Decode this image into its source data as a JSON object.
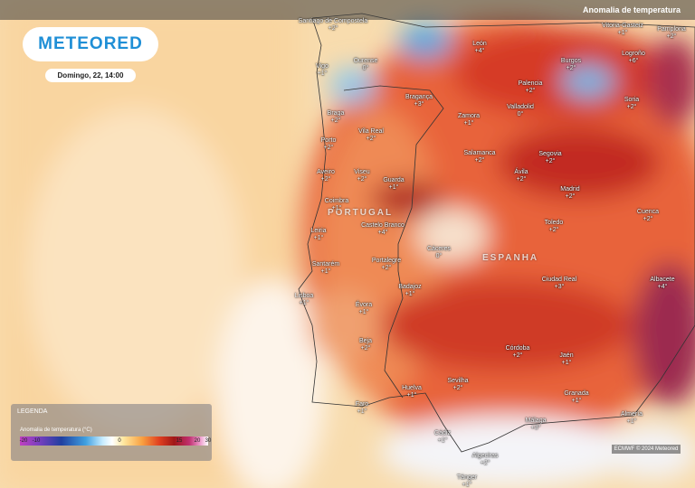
{
  "header": {
    "layer": "Anomalia de temperatura",
    "logo": "METEORED",
    "date": "Domingo, 22, 14:00"
  },
  "countries": [
    "PORTUGAL",
    "ESPANHA"
  ],
  "cities": [
    {
      "name": "Santiago de Compostela",
      "value": "+2°"
    },
    {
      "name": "Ourense",
      "value": "0°"
    },
    {
      "name": "Vigo",
      "value": "+1°"
    },
    {
      "name": "León",
      "value": "+4°"
    },
    {
      "name": "Palencia",
      "value": "+2°"
    },
    {
      "name": "Burgos",
      "value": "+2°"
    },
    {
      "name": "Vitoria-Gasteiz",
      "value": "+1°"
    },
    {
      "name": "Pamplona",
      "value": "+2°"
    },
    {
      "name": "Logroño",
      "value": "+6°"
    },
    {
      "name": "Bragança",
      "value": "+3°"
    },
    {
      "name": "Braga",
      "value": "+2°"
    },
    {
      "name": "Vila Real",
      "value": "+2°"
    },
    {
      "name": "Zamora",
      "value": "+1°"
    },
    {
      "name": "Valladolid",
      "value": "0°"
    },
    {
      "name": "Soria",
      "value": "+2°"
    },
    {
      "name": "Porto",
      "value": "+2°"
    },
    {
      "name": "Salamanca",
      "value": "+2°"
    },
    {
      "name": "Segovia",
      "value": "+2°"
    },
    {
      "name": "Aveiro",
      "value": "+2°"
    },
    {
      "name": "Viseu",
      "value": "+2°"
    },
    {
      "name": "Guarda",
      "value": "+1°"
    },
    {
      "name": "Ávila",
      "value": "+2°"
    },
    {
      "name": "Madrid",
      "value": "+2°"
    },
    {
      "name": "Coimbra",
      "value": "+1°"
    },
    {
      "name": "Cuenca",
      "value": "+2°"
    },
    {
      "name": "Leiria",
      "value": "+1°"
    },
    {
      "name": "Castelo Branco",
      "value": "+4°"
    },
    {
      "name": "Toledo",
      "value": "+2°"
    },
    {
      "name": "Cáceres",
      "value": "0°"
    },
    {
      "name": "Santarém",
      "value": "+1°"
    },
    {
      "name": "Portalegre",
      "value": "+2°"
    },
    {
      "name": "Albacete",
      "value": "+4°"
    },
    {
      "name": "Ciudad Real",
      "value": "+3°"
    },
    {
      "name": "Lisboa",
      "value": "+1°"
    },
    {
      "name": "Badajoz",
      "value": "+1°"
    },
    {
      "name": "Évora",
      "value": "+1°"
    },
    {
      "name": "Beja",
      "value": "+2°"
    },
    {
      "name": "Córdoba",
      "value": "+2°"
    },
    {
      "name": "Jaén",
      "value": "+1°"
    },
    {
      "name": "Sevilha",
      "value": "+2°"
    },
    {
      "name": "Huelva",
      "value": "+1°"
    },
    {
      "name": "Faro",
      "value": "+1°"
    },
    {
      "name": "Granada",
      "value": "+1°"
    },
    {
      "name": "Almería",
      "value": "+1°"
    },
    {
      "name": "Málaga",
      "value": "+3°"
    },
    {
      "name": "Cádiz",
      "value": "+1°"
    },
    {
      "name": "Algeciras",
      "value": "+2°"
    },
    {
      "name": "Tánger",
      "value": "+1°"
    }
  ],
  "legend": {
    "title": "LEGENDA",
    "subtitle": "Anomalia de temperatura (°C)",
    "ticks": [
      -20,
      -10,
      0,
      15,
      20,
      30
    ]
  },
  "credit": "ECMWF © 2024 Meteored"
}
